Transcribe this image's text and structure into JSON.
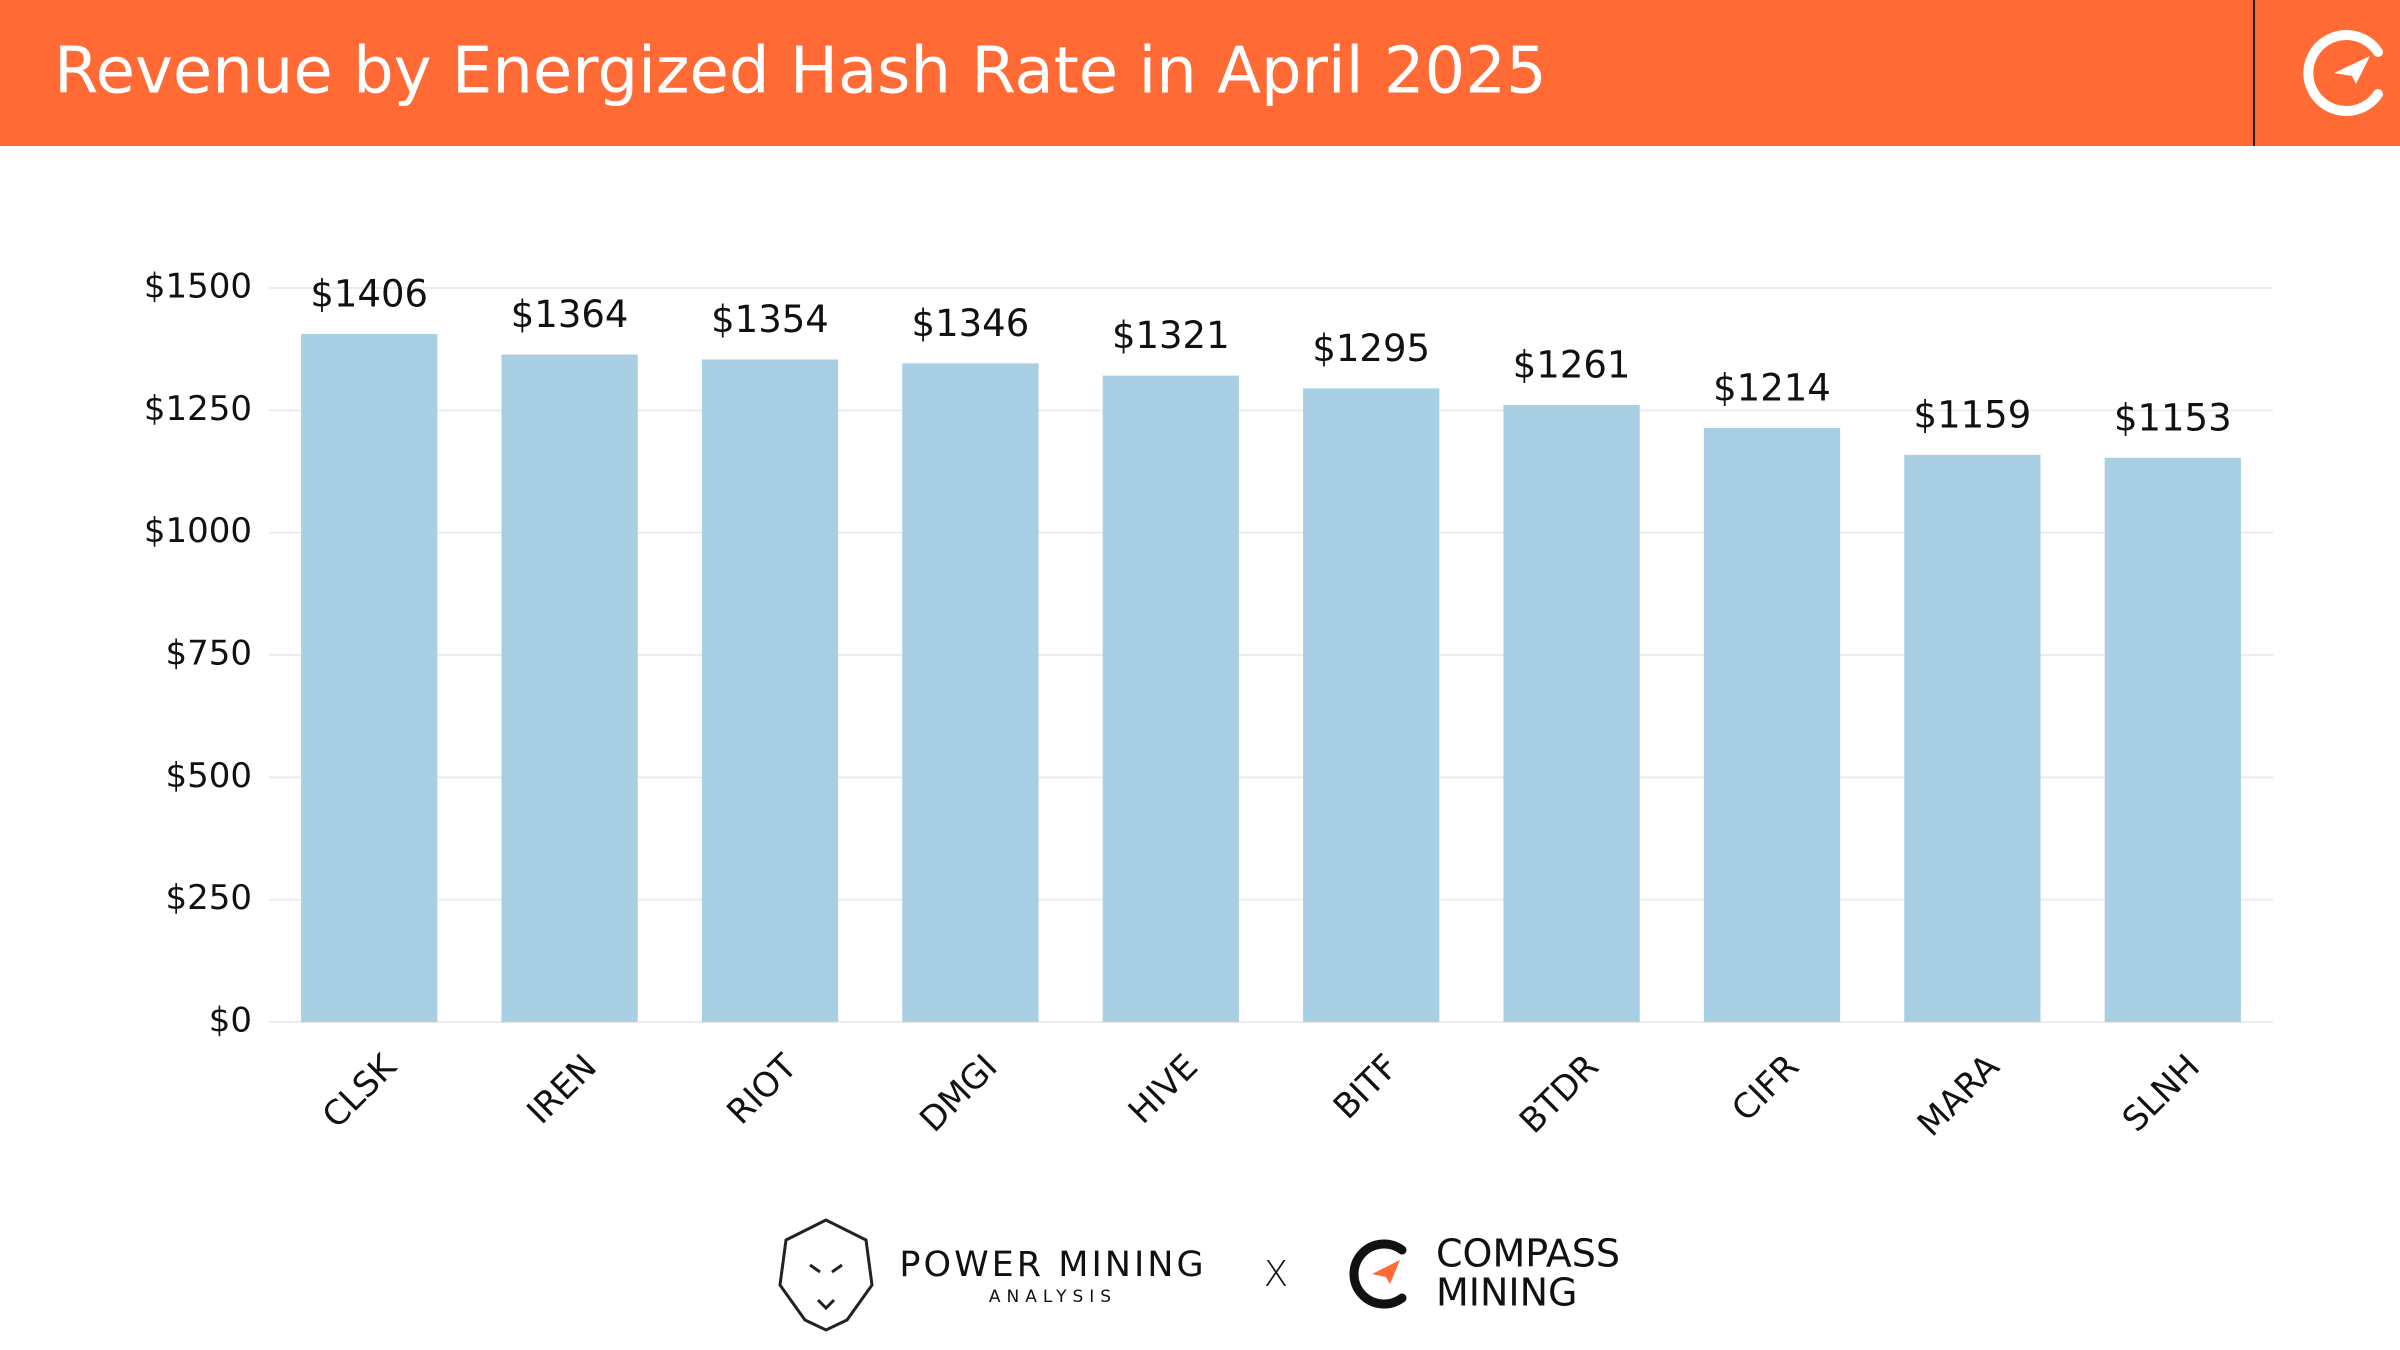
{
  "chart_data": {
    "type": "bar",
    "title": "Revenue by Energized Hash Rate in April 2025",
    "categories": [
      "CLSK",
      "IREN",
      "RIOT",
      "DMGI",
      "HIVE",
      "BITF",
      "BTDR",
      "CIFR",
      "MARA",
      "SLNH"
    ],
    "values": [
      1406,
      1364,
      1354,
      1346,
      1321,
      1295,
      1261,
      1214,
      1159,
      1153
    ],
    "value_labels": [
      "$1406",
      "$1364",
      "$1354",
      "$1346",
      "$1321",
      "$1295",
      "$1261",
      "$1214",
      "$1159",
      "$1153"
    ],
    "color": "#a8cfe3",
    "ylim": [
      0,
      1500
    ],
    "yticks": [
      {
        "value": 0,
        "label": "$0"
      },
      {
        "value": 250,
        "label": "$250"
      },
      {
        "value": 500,
        "label": "$500"
      },
      {
        "value": 750,
        "label": "$750"
      },
      {
        "value": 1000,
        "label": "$1000"
      },
      {
        "value": 1250,
        "label": "$1250"
      },
      {
        "value": 1500,
        "label": "$1500"
      }
    ],
    "grid": true
  },
  "footer": {
    "left_brand": "POWER MINING",
    "left_subtitle": "ANALYSIS",
    "separator": "X",
    "right_brand_line1": "COMPASS",
    "right_brand_line2": "MINING"
  }
}
